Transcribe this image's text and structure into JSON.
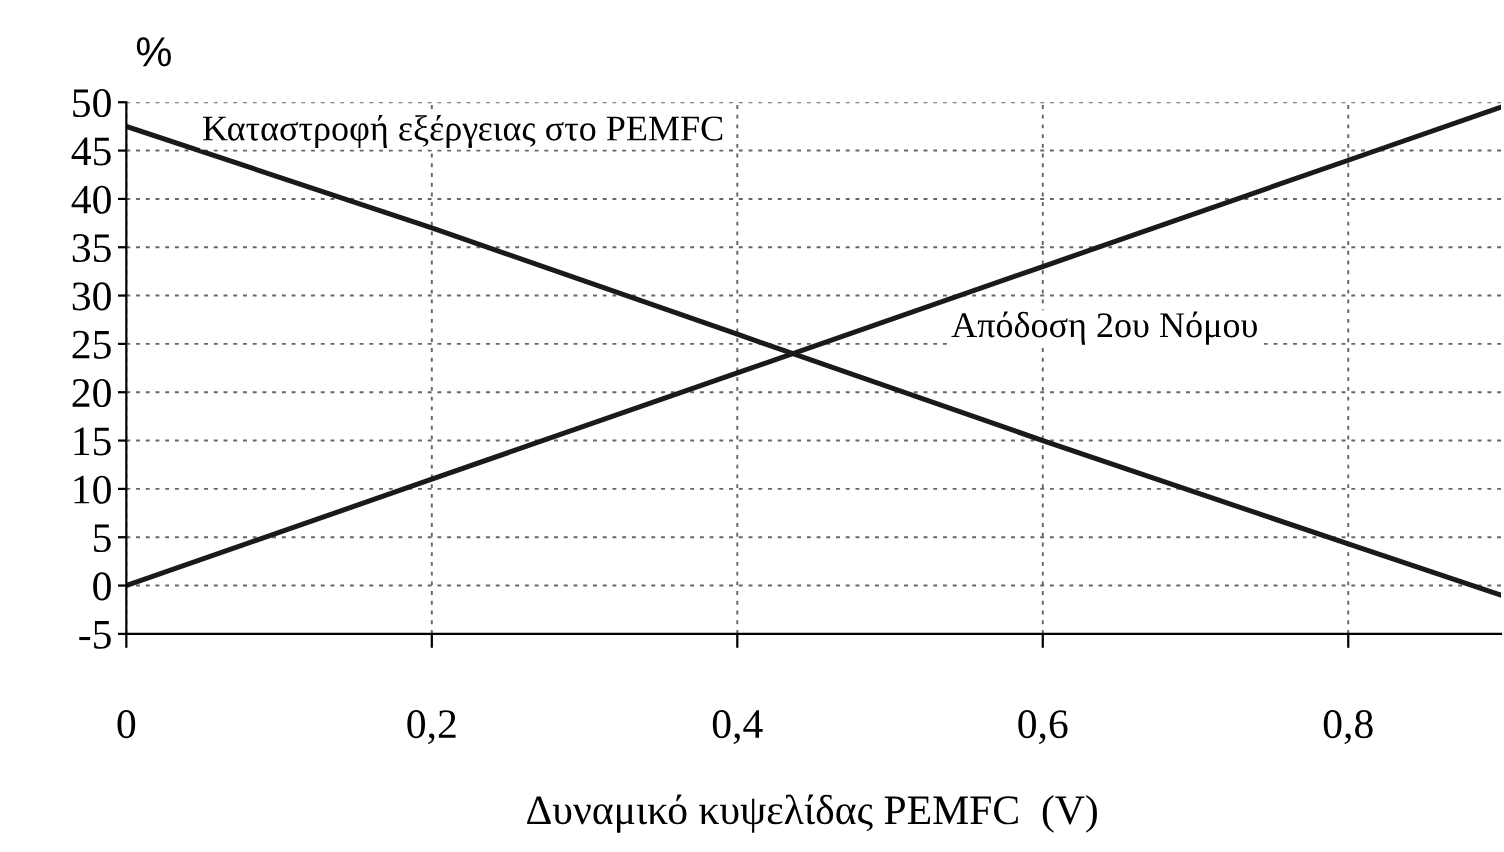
{
  "chart_data": {
    "type": "line",
    "ylabel": "%",
    "xlabel": "Δυναμικό κυψελίδας PEMFC  (V)",
    "x": [
      0,
      0.2,
      0.4,
      0.6,
      0.8,
      0.9
    ],
    "series": [
      {
        "color": "#1a1a1a",
        "values": [
          47.5,
          37,
          26,
          15,
          4.3,
          -1
        ]
      },
      {
        "color": "#1a1a1a",
        "values": [
          0,
          11,
          22,
          33,
          44,
          49.5
        ]
      }
    ],
    "xlim": [
      0,
      0.9
    ],
    "xticks": [
      {
        "value": 0,
        "label": "0"
      },
      {
        "value": 0.2,
        "label": "0,2"
      },
      {
        "value": 0.4,
        "label": "0,4"
      },
      {
        "value": 0.6,
        "label": "0,6"
      },
      {
        "value": 0.8,
        "label": "0,8"
      }
    ],
    "ylim": [
      -5,
      50
    ],
    "yticks": [
      -5,
      0,
      5,
      10,
      15,
      20,
      25,
      30,
      35,
      40,
      45,
      50
    ],
    "grid": true,
    "marker": "none",
    "line_style": "solid",
    "annotations": [
      "Καταστροφή εξέργειας στο PEMFC",
      "Απόδοση 2ου Νόμου"
    ]
  }
}
